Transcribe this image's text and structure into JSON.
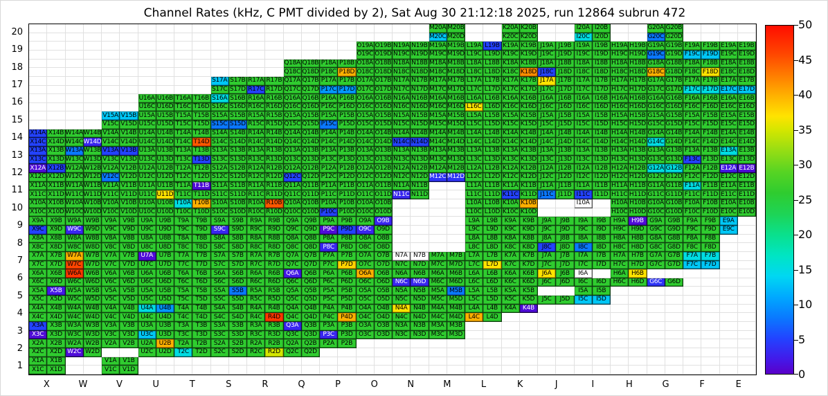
{
  "title": "Channel Rates (kHz, C PMT divided by 2), Sat Aug 30 21:12:18 2025, run 12864 subrun 472",
  "colorbar": {
    "min": 0,
    "max": 50,
    "ticks": [
      0,
      5,
      10,
      15,
      20,
      25,
      30,
      35,
      40,
      45,
      50
    ],
    "stops": [
      [
        0,
        "#5a00c8"
      ],
      [
        2,
        "#4418e8"
      ],
      [
        5,
        "#2342ff"
      ],
      [
        8,
        "#0a78ff"
      ],
      [
        11,
        "#00a8ff"
      ],
      [
        14,
        "#00d7f2"
      ],
      [
        17,
        "#00e5c3"
      ],
      [
        20,
        "#0ae08c"
      ],
      [
        23,
        "#1ed455"
      ],
      [
        26,
        "#2fcc2f"
      ],
      [
        29,
        "#57d423"
      ],
      [
        32,
        "#95dd14"
      ],
      [
        35,
        "#d4e600"
      ],
      [
        37,
        "#ffe300"
      ],
      [
        40,
        "#ffb000"
      ],
      [
        43,
        "#ff7a00"
      ],
      [
        46,
        "#ff4500"
      ],
      [
        50,
        "#ff0d00"
      ]
    ]
  },
  "chart_data": {
    "type": "heatmap",
    "unit": "kHz",
    "title": "Channel Rates (kHz, C PMT divided by 2), Sat Aug 30 21:12:18 2025, run 12864 subrun 472",
    "columns": [
      "X",
      "W",
      "V",
      "U",
      "T",
      "S",
      "R",
      "Q",
      "P",
      "O",
      "N",
      "M",
      "L",
      "K",
      "J",
      "I",
      "H",
      "G",
      "F",
      "E"
    ],
    "rows": [
      20,
      19,
      18,
      17,
      16,
      15,
      14,
      13,
      12,
      11,
      10,
      9,
      8,
      7,
      6,
      5,
      4,
      3,
      2,
      1
    ],
    "sublabels": [
      "A",
      "B",
      "C",
      "D"
    ],
    "default_value": 26,
    "footprint": {
      "20": [
        "M",
        "K",
        "I",
        "G"
      ],
      "19": [
        "O",
        "N",
        "M",
        "L",
        "K",
        "J",
        "I",
        "H",
        "G",
        "F",
        "E"
      ],
      "18": [
        "Q",
        "P",
        "O",
        "N",
        "M",
        "L",
        "K",
        "J",
        "I",
        "H",
        "G",
        "F",
        "E"
      ],
      "17": [
        "S",
        "R",
        "Q",
        "P",
        "O",
        "N",
        "M",
        "L",
        "K",
        "J",
        "I",
        "H",
        "G",
        "F",
        "E"
      ],
      "16": [
        "U",
        "T",
        "S",
        "R",
        "Q",
        "P",
        "O",
        "N",
        "M",
        "L",
        "K",
        "J",
        "I",
        "H",
        "G",
        "F",
        "E"
      ],
      "15": [
        "V",
        "U",
        "T",
        "S",
        "R",
        "Q",
        "P",
        "O",
        "N",
        "M",
        "L",
        "K",
        "J",
        "I",
        "H",
        "G",
        "F",
        "E"
      ],
      "14": [
        "X",
        "W",
        "V",
        "U",
        "T",
        "S",
        "R",
        "Q",
        "P",
        "O",
        "N",
        "M",
        "L",
        "K",
        "J",
        "I",
        "H",
        "G",
        "F",
        "E"
      ],
      "13": [
        "X",
        "W",
        "V",
        "U",
        "T",
        "S",
        "R",
        "Q",
        "P",
        "O",
        "N",
        "M",
        "L",
        "K",
        "J",
        "I",
        "H",
        "G",
        "F",
        "E"
      ],
      "12": [
        "X",
        "W",
        "V",
        "U",
        "T",
        "S",
        "R",
        "Q",
        "P",
        "O",
        "N",
        "M",
        "L",
        "K",
        "J",
        "I",
        "H",
        "G",
        "F",
        "E"
      ],
      "11": [
        "X",
        "W",
        "V",
        "U",
        "T",
        "S",
        "R",
        "Q",
        "P",
        "O",
        "N",
        "L",
        "K",
        "J",
        "I",
        "H",
        "G",
        "F",
        "E"
      ],
      "10": [
        "X",
        "W",
        "V",
        "U",
        "T",
        "S",
        "R",
        "Q",
        "P",
        "O",
        "L",
        "K",
        "I",
        "H",
        "G",
        "F",
        "E"
      ],
      "9": [
        "X",
        "W",
        "V",
        "U",
        "T",
        "S",
        "R",
        "Q",
        "P",
        "O",
        "L",
        "K",
        "J",
        "I",
        "H",
        "G",
        "F",
        "E"
      ],
      "8": [
        "X",
        "W",
        "V",
        "U",
        "T",
        "S",
        "R",
        "Q",
        "P",
        "O",
        "L",
        "K",
        "J",
        "I",
        "H",
        "G",
        "F"
      ],
      "7": [
        "X",
        "W",
        "V",
        "U",
        "T",
        "S",
        "R",
        "Q",
        "P",
        "O",
        "N",
        "M",
        "L",
        "K",
        "J",
        "I",
        "H",
        "G",
        "F"
      ],
      "6": [
        "X",
        "W",
        "V",
        "U",
        "T",
        "S",
        "R",
        "Q",
        "P",
        "O",
        "N",
        "M",
        "L",
        "K",
        "J",
        "I",
        "H",
        "G"
      ],
      "5": [
        "X",
        "W",
        "V",
        "U",
        "T",
        "S",
        "R",
        "Q",
        "P",
        "O",
        "N",
        "M",
        "L",
        "K",
        "J",
        "I"
      ],
      "4": [
        "X",
        "W",
        "V",
        "U",
        "T",
        "S",
        "R",
        "Q",
        "P",
        "O",
        "N",
        "M",
        "L",
        "K"
      ],
      "3": [
        "X",
        "W",
        "V",
        "U",
        "T",
        "S",
        "R",
        "Q",
        "P",
        "O",
        "N",
        "M"
      ],
      "2": [
        "X",
        "W",
        "V",
        "U",
        "T",
        "S",
        "R",
        "Q",
        "P"
      ],
      "1": [
        "X",
        "V"
      ]
    },
    "overrides": {
      "M20C": 13,
      "I20C": 15,
      "G20C": 8,
      "L19B": 5,
      "G19C": 8,
      "F19C": 13,
      "F19D": 13,
      "P18D": 40,
      "K18D": 42,
      "J18C": 5,
      "G18C": 40,
      "F18D": 37,
      "S17A": 13,
      "R17C": 5,
      "P17C": 10,
      "P17D": 10,
      "J17A": 37,
      "F17C": 15,
      "F17D": 15,
      "E17C": 13,
      "E17D": 13,
      "S16A": 15,
      "L16C": 37,
      "V15A": 13,
      "V15B": 13,
      "S15C": 8,
      "S15D": 8,
      "P15C": 8,
      "X14A": 5,
      "X14C": 5,
      "W14D": 3,
      "T14D": 45,
      "N14C": 5,
      "N14D": 5,
      "G14C": 15,
      "X13A": 5,
      "X13C": 5,
      "W13A": 8,
      "V13A": 5,
      "V13B": 5,
      "T13D": 5,
      "F13C": 5,
      "E13A": 15,
      "X12A": 1,
      "X12B": 5,
      "V12C": 8,
      "Q12C": 5,
      "M12C": 4,
      "M12D": 4,
      "G12A": 15,
      "G12B": 15,
      "E12A": 2,
      "E12B": 1,
      "T11B": 1,
      "U11D": 37,
      "N11C": 3,
      "K11C": 5,
      "J11C": 8,
      "I11C": 5,
      "F11A": 15,
      "T10A": 15,
      "T10B": 40,
      "R10B": 45,
      "P10C": 5,
      "K10B": 40,
      "X9C": 5,
      "W9C": 3,
      "S9C": 3,
      "P9C": 1,
      "P9D": 5,
      "O9B": 3,
      "O9C": 3,
      "H9B": 1,
      "E9A": 13,
      "E9C": 13,
      "P8C": 3,
      "J8C": 5,
      "I8C": 8,
      "W7A": 40,
      "W7C": 46,
      "U7A": 1,
      "P7D": 38,
      "L7D": 37,
      "F7A": 15,
      "F7B": 15,
      "F7C": 13,
      "F7D": 13,
      "W6A": 47,
      "Q6A": 2,
      "O6A": 40,
      "N6C": 3,
      "N6D": 3,
      "J6A": 37,
      "H6B": 37,
      "G6C": 4,
      "X5B": 2,
      "S5B": 8,
      "M5B": 8,
      "I5C": 13,
      "I5D": 13,
      "U4A": 15,
      "U4B": 10,
      "R4D": 47,
      "P4D": 40,
      "N4A": 37,
      "L4C": 40,
      "K4B": 1,
      "X3A": 5,
      "X3C": 1,
      "U3C": 13,
      "Q3A": 3,
      "P3C": 3,
      "W2C": 1,
      "U2B": 40,
      "T2C": 15,
      "R2D": 35
    },
    "white_labeled": [
      "I10A",
      "I6A",
      "N7A",
      "N7B"
    ],
    "absent_cells": [
      "I10B",
      "I10C",
      "I10D",
      "E9B",
      "E9D",
      "I6B",
      "G6A",
      "G6B",
      "J5A",
      "J5B",
      "K4C",
      "K4D",
      "V2C",
      "V2D",
      "P2C",
      "P2D"
    ]
  }
}
